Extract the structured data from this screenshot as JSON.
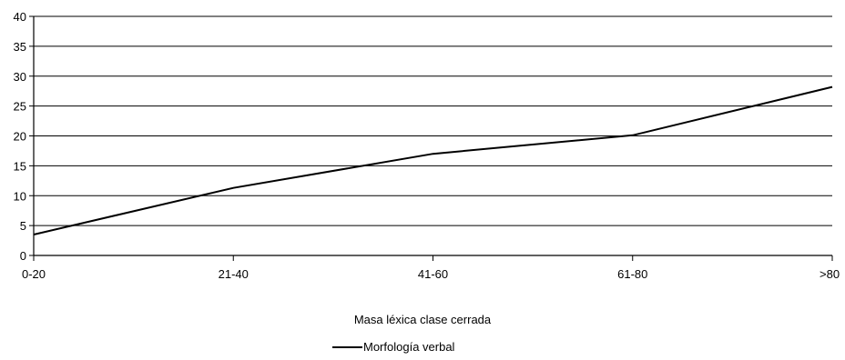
{
  "chart_data": {
    "type": "line",
    "categories": [
      "0-20",
      "21-40",
      "41-60",
      "61-80",
      ">80"
    ],
    "series": [
      {
        "name": "Morfología verbal",
        "values": [
          3.5,
          11.3,
          17.0,
          20.1,
          28.2
        ]
      }
    ],
    "xlabel": "Masa léxica clase cerrada",
    "ylabel": "",
    "ylim": [
      0,
      40
    ],
    "yticks": [
      0,
      5,
      10,
      15,
      20,
      25,
      30,
      35,
      40
    ],
    "grid": true,
    "legend": "bottom",
    "line_color": "#000000"
  }
}
